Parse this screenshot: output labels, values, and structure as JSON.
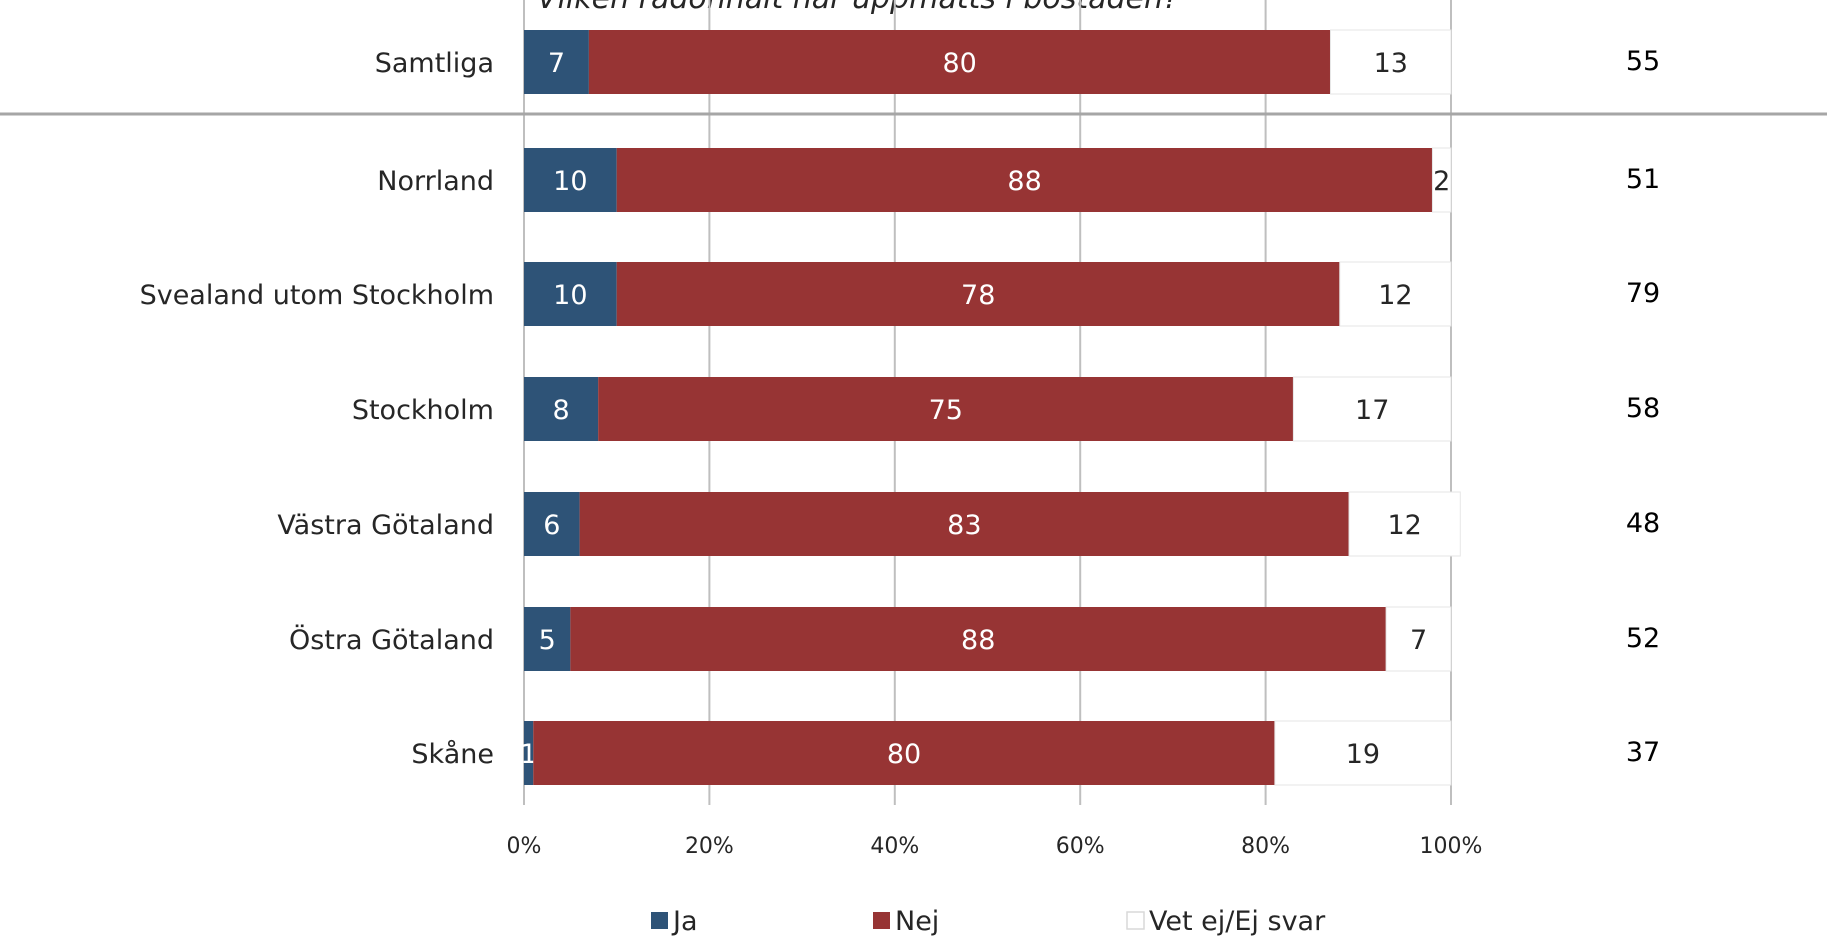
{
  "chart_data": {
    "type": "bar",
    "orientation": "horizontal",
    "stacked": true,
    "title": "Vilken radonhalt har uppmätts i bostaden?",
    "categories": [
      "Samtliga",
      "Norrland",
      "Svealand utom Stockholm",
      "Stockholm",
      "Västra Götaland",
      "Östra Götaland",
      "Skåne"
    ],
    "series": [
      {
        "name": "Ja",
        "color": "#2e5377",
        "label_color": "#ffffff",
        "values": [
          7,
          10,
          10,
          8,
          6,
          5,
          1
        ]
      },
      {
        "name": "Nej",
        "color": "#973434",
        "label_color": "#ffffff",
        "values": [
          80,
          88,
          78,
          75,
          83,
          88,
          80
        ]
      },
      {
        "name": "Vet ej/Ej svar",
        "color": "#ffffff",
        "label_color": "#262626",
        "values": [
          13,
          2,
          12,
          17,
          12,
          7,
          19
        ]
      }
    ],
    "n_values": [
      "55",
      "51",
      "79",
      "58",
      "48",
      "52",
      "37"
    ],
    "xlim": [
      0,
      100
    ],
    "x_ticks": [
      "0%",
      "20%",
      "40%",
      "60%",
      "80%",
      "100%"
    ],
    "grid": true,
    "legend_position": "bottom",
    "separator_after_first_row": true
  }
}
